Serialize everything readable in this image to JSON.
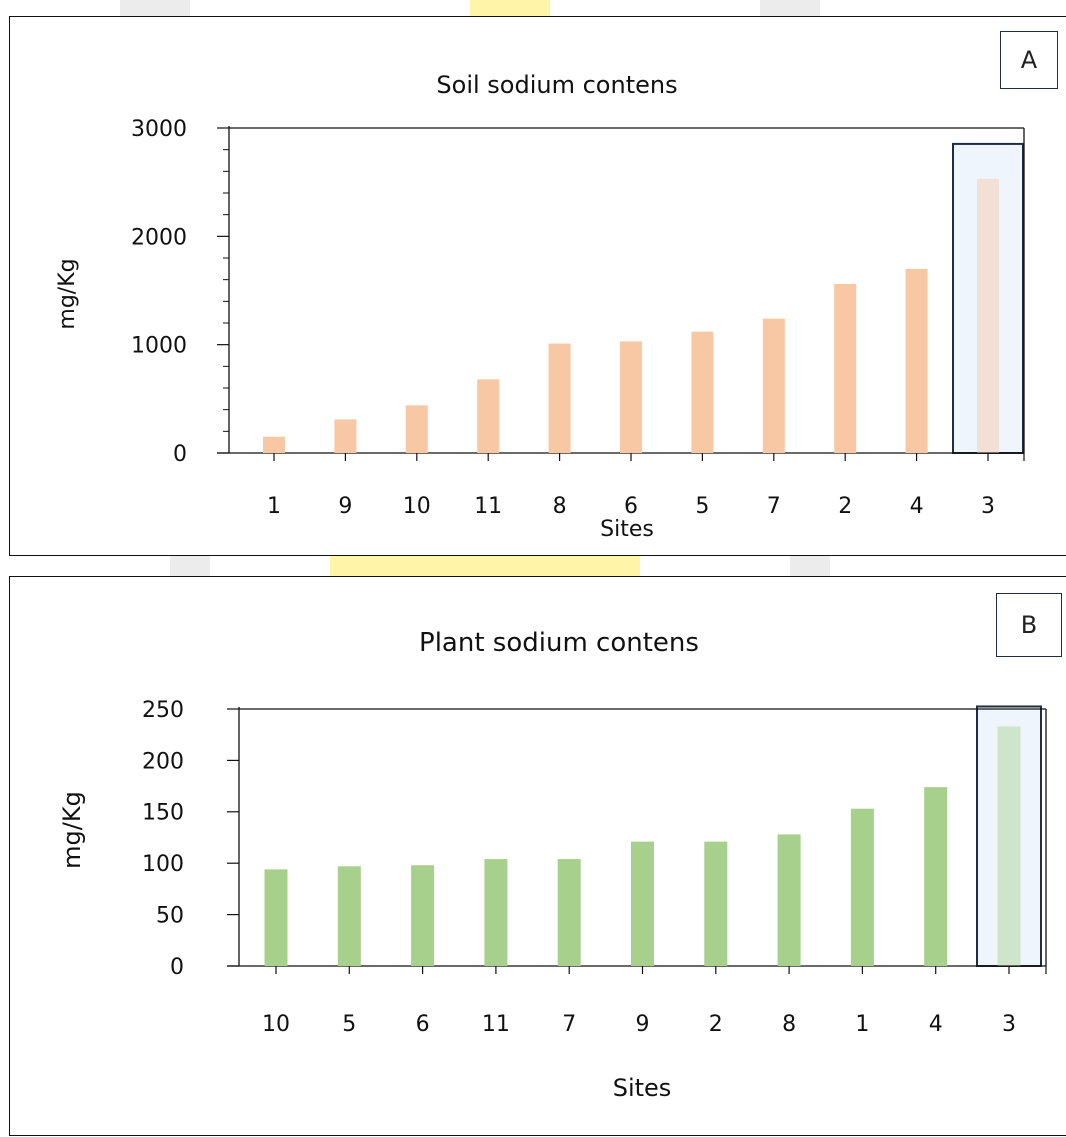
{
  "colors": {
    "soil_bar": "#f8c8a4",
    "plant_bar": "#a8d08d",
    "highlight_fill": "#eef5fd",
    "highlight_border": "#1f2d44"
  },
  "chart_data": [
    {
      "type": "bar",
      "panel_label": "A",
      "title": "Soil sodium contens",
      "xlabel": "Sites",
      "ylabel": "mg/Kg",
      "categories": [
        "1",
        "9",
        "10",
        "11",
        "8",
        "6",
        "5",
        "7",
        "2",
        "4",
        "3"
      ],
      "values": [
        150,
        310,
        440,
        680,
        1010,
        1030,
        1120,
        1240,
        1560,
        1700,
        2530
      ],
      "ylim": [
        0,
        3000
      ],
      "yticks": [
        0,
        1000,
        2000,
        3000
      ],
      "grid": false,
      "highlighted_category": "3"
    },
    {
      "type": "bar",
      "panel_label": "B",
      "title": "Plant sodium contens",
      "xlabel": "Sites",
      "ylabel": "mg/Kg",
      "categories": [
        "10",
        "5",
        "6",
        "11",
        "7",
        "9",
        "2",
        "8",
        "1",
        "4",
        "3"
      ],
      "values": [
        94,
        97,
        98,
        104,
        104,
        121,
        121,
        128,
        153,
        174,
        233
      ],
      "ylim": [
        0,
        250
      ],
      "yticks": [
        0,
        50,
        100,
        150,
        200,
        250
      ],
      "grid": false,
      "highlighted_category": "3"
    }
  ]
}
